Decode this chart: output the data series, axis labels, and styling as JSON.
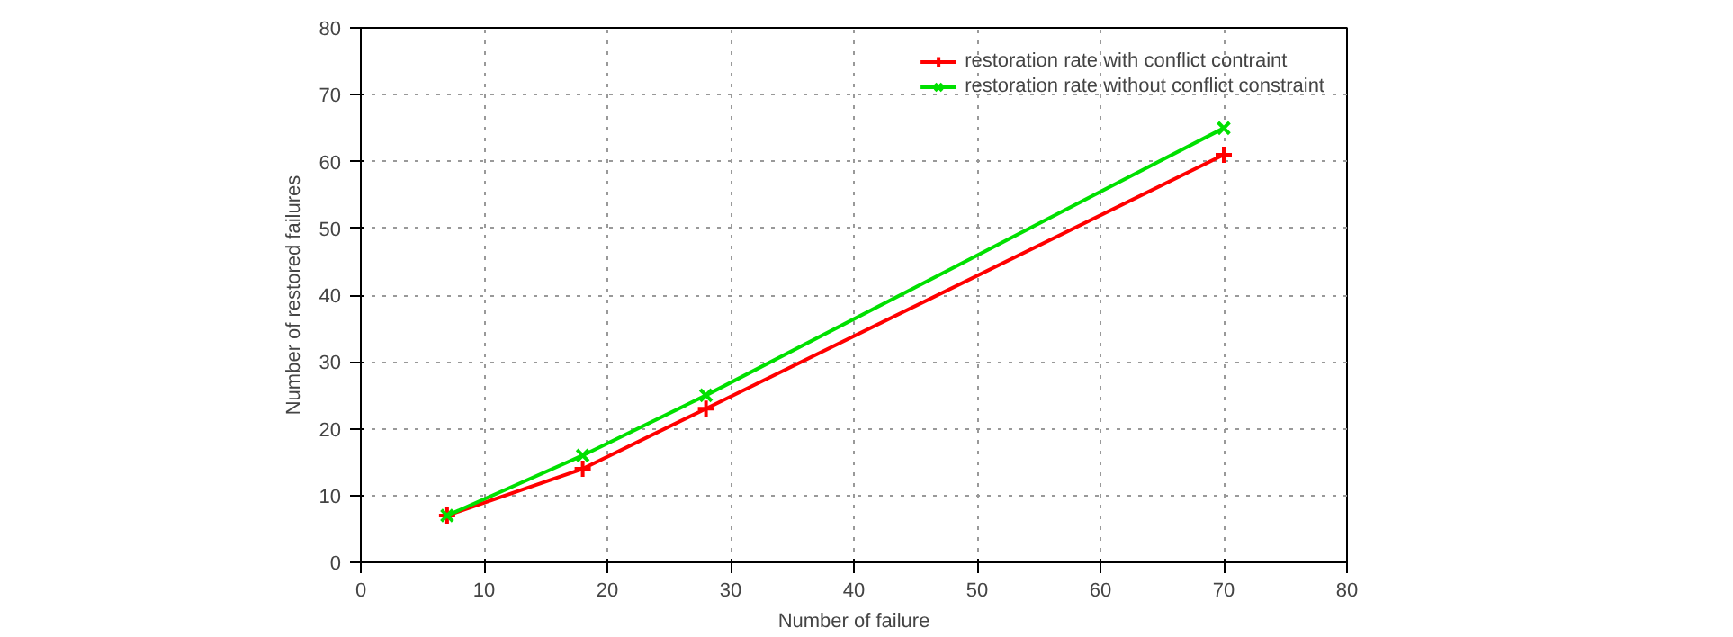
{
  "chart_data": {
    "type": "line",
    "xlabel": "Number of failure",
    "ylabel": "Number of restored failures",
    "xlim": [
      0,
      80
    ],
    "ylim": [
      0,
      80
    ],
    "xticks": [
      0,
      10,
      20,
      30,
      40,
      50,
      60,
      70,
      80
    ],
    "yticks": [
      0,
      10,
      20,
      30,
      40,
      50,
      60,
      70,
      80
    ],
    "grid": true,
    "legend": "top right",
    "line_style": "solid",
    "series": [
      {
        "name": "restoration rate with conflict contraint",
        "color": "#ff0000",
        "marker": "cross",
        "x": [
          7,
          18,
          28,
          70
        ],
        "values": [
          7,
          14,
          23,
          61
        ]
      },
      {
        "name": "restoration rate without conflict constraint",
        "color": "#00e000",
        "marker": "x",
        "x": [
          7,
          18,
          28,
          70
        ],
        "values": [
          7,
          16,
          25,
          65
        ]
      }
    ]
  }
}
